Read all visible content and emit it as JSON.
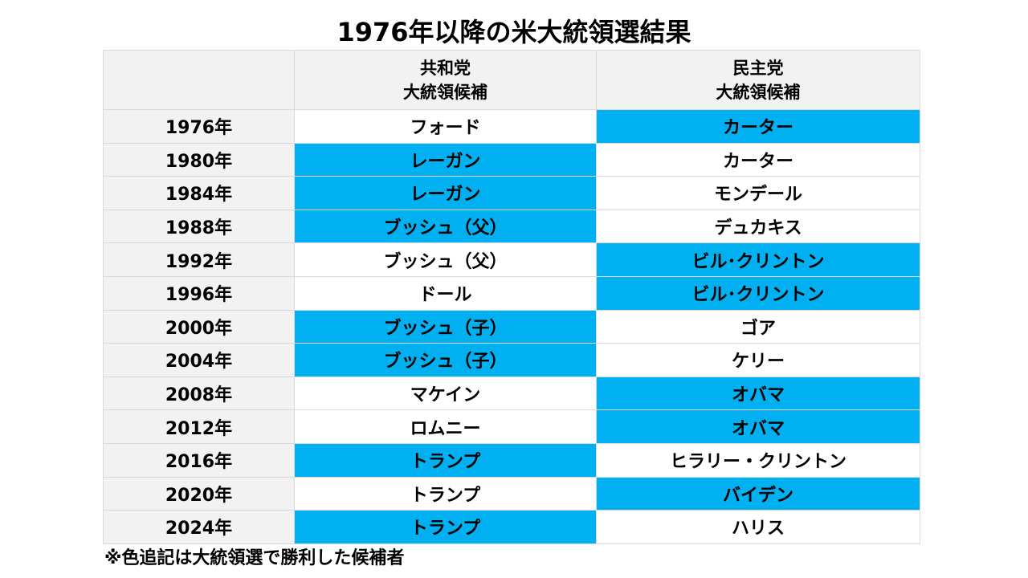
{
  "title": "1976年以降の米大統領選結果",
  "colors": {
    "winner_highlight": "#00b0f0",
    "header_background": "#f2f2f2",
    "year_column_background": "#f2f2f2",
    "border": "#d9d9d9"
  },
  "table": {
    "headers": {
      "year": "",
      "republican": [
        "共和党",
        "大統領候補"
      ],
      "democratic": [
        "民主党",
        "大統領候補"
      ]
    },
    "rows": [
      {
        "year": "1976年",
        "republican": "フォード",
        "democratic": "カーター",
        "winner": "democratic"
      },
      {
        "year": "1980年",
        "republican": "レーガン",
        "democratic": "カーター",
        "winner": "republican"
      },
      {
        "year": "1984年",
        "republican": "レーガン",
        "democratic": "モンデール",
        "winner": "republican"
      },
      {
        "year": "1988年",
        "republican": "ブッシュ（父）",
        "democratic": "デュカキス",
        "winner": "republican"
      },
      {
        "year": "1992年",
        "republican": "ブッシュ（父）",
        "democratic": "ビル･クリントン",
        "winner": "democratic"
      },
      {
        "year": "1996年",
        "republican": "ドール",
        "democratic": "ビル･クリントン",
        "winner": "democratic"
      },
      {
        "year": "2000年",
        "republican": "ブッシュ（子）",
        "democratic": "ゴア",
        "winner": "republican"
      },
      {
        "year": "2004年",
        "republican": "ブッシュ（子）",
        "democratic": "ケリー",
        "winner": "republican"
      },
      {
        "year": "2008年",
        "republican": "マケイン",
        "democratic": "オバマ",
        "winner": "democratic"
      },
      {
        "year": "2012年",
        "republican": "ロムニー",
        "democratic": "オバマ",
        "winner": "democratic"
      },
      {
        "year": "2016年",
        "republican": "トランプ",
        "democratic": "ヒラリー・クリントン",
        "winner": "republican"
      },
      {
        "year": "2020年",
        "republican": "トランプ",
        "democratic": "バイデン",
        "winner": "democratic"
      },
      {
        "year": "2024年",
        "republican": "トランプ",
        "democratic": "ハリス",
        "winner": "republican"
      }
    ]
  },
  "note": "※色追記は大統領選で勝利した候補者"
}
